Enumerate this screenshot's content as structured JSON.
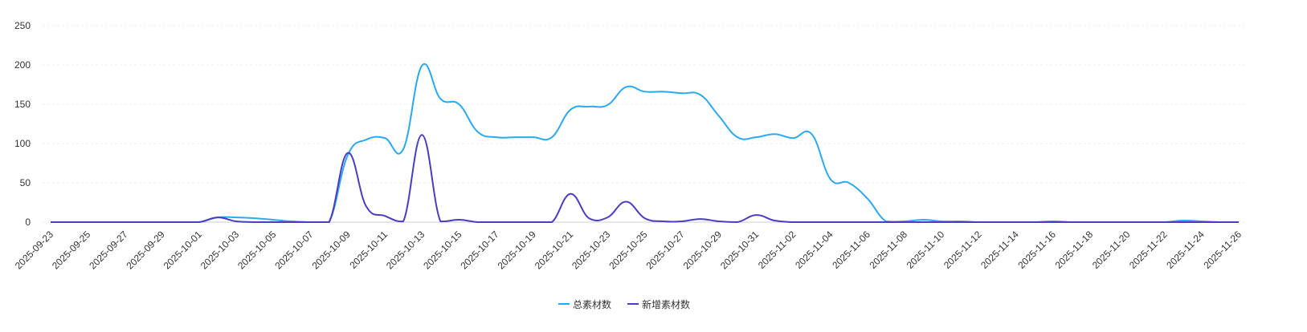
{
  "chart_data": {
    "type": "line",
    "categories": [
      "2025-09-23",
      null,
      "2025-09-25",
      null,
      "2025-09-27",
      null,
      "2025-09-29",
      null,
      "2025-10-01",
      null,
      "2025-10-03",
      null,
      "2025-10-05",
      null,
      "2025-10-07",
      null,
      "2025-10-09",
      null,
      "2025-10-11",
      null,
      "2025-10-13",
      null,
      "2025-10-15",
      null,
      "2025-10-17",
      null,
      "2025-10-19",
      null,
      "2025-10-21",
      null,
      "2025-10-23",
      null,
      "2025-10-25",
      null,
      "2025-10-27",
      null,
      "2025-10-29",
      null,
      "2025-10-31",
      null,
      "2025-11-02",
      null,
      "2025-11-04",
      null,
      "2025-11-06",
      null,
      "2025-11-08",
      null,
      "2025-11-10",
      null,
      "2025-11-12",
      null,
      "2025-11-14",
      null,
      "2025-11-16",
      null,
      "2025-11-18",
      null,
      "2025-11-20",
      null,
      "2025-11-22",
      null,
      "2025-11-24",
      null,
      "2025-11-26"
    ],
    "series": [
      {
        "name": "总素材数",
        "color": "#2aa9f0",
        "values": [
          0,
          0,
          0,
          0,
          0,
          0,
          0,
          0,
          0,
          6,
          6,
          5,
          3,
          1,
          0,
          0,
          85,
          105,
          107,
          93,
          199,
          157,
          150,
          115,
          108,
          108,
          108,
          108,
          143,
          147,
          149,
          172,
          166,
          166,
          164,
          162,
          135,
          108,
          108,
          112,
          107,
          112,
          55,
          50,
          30,
          1,
          1,
          3,
          1,
          1,
          0,
          0,
          0,
          0,
          1,
          0,
          0,
          0,
          0,
          0,
          0,
          2,
          1,
          0,
          0
        ]
      },
      {
        "name": "新增素材数",
        "color": "#4b3cc4",
        "values": [
          0,
          0,
          0,
          0,
          0,
          0,
          0,
          0,
          0,
          6,
          1,
          0,
          0,
          0,
          0,
          0,
          88,
          20,
          8,
          1,
          111,
          1,
          3,
          0,
          0,
          0,
          0,
          0,
          36,
          5,
          6,
          26,
          5,
          1,
          1,
          4,
          1,
          0,
          9,
          2,
          0,
          0,
          0,
          0,
          0,
          0,
          0,
          0,
          0,
          0,
          0,
          0,
          0,
          0,
          0,
          0,
          0,
          0,
          0,
          0,
          0,
          0,
          0,
          0,
          0
        ]
      }
    ],
    "ylim": [
      0,
      250
    ],
    "yticks": [
      0,
      50,
      100,
      150,
      200,
      250
    ],
    "grid": true,
    "legend": "bottom"
  }
}
